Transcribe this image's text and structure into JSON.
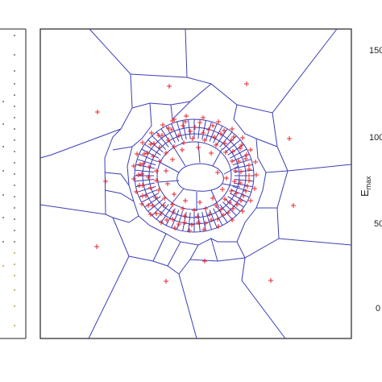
{
  "chart_data": {
    "type": "scatter",
    "title": "",
    "xlabel": "",
    "ylabel": "E_max",
    "ylabel_main": "E",
    "ylabel_sub": "max",
    "y_ticks": [
      {
        "value": 150,
        "label": "150"
      },
      {
        "value": 100,
        "label": "100"
      },
      {
        "value": 50,
        "label": "50"
      },
      {
        "value": 0,
        "label": "0"
      }
    ],
    "grid": false,
    "legend": "none",
    "colors": {
      "points": "#e8262a",
      "cells": "#3b3fb5",
      "frame": "#222222",
      "dots_left": "#6b6b6b",
      "dots_left_accent": "#b8a23a"
    },
    "series": [
      {
        "marker": "plus",
        "values_description_free": true,
        "points": [
          [
            210,
            107
          ],
          [
            306,
            104
          ],
          [
            121,
            139
          ],
          [
            359,
            172
          ],
          [
            131,
            225
          ],
          [
            364,
            255
          ],
          [
            120,
            306
          ],
          [
            336,
            348
          ],
          [
            254,
            324
          ],
          [
            206,
            349
          ],
          [
            214,
            150
          ],
          [
            230,
            151
          ],
          [
            248,
            152
          ],
          [
            264,
            156
          ],
          [
            278,
            162
          ],
          [
            290,
            170
          ],
          [
            300,
            180
          ],
          [
            306,
            192
          ],
          [
            309,
            205
          ],
          [
            309,
            218
          ],
          [
            307,
            231
          ],
          [
            302,
            243
          ],
          [
            294,
            254
          ],
          [
            283,
            264
          ],
          [
            270,
            272
          ],
          [
            255,
            277
          ],
          [
            238,
            279
          ],
          [
            222,
            278
          ],
          [
            207,
            273
          ],
          [
            194,
            265
          ],
          [
            184,
            255
          ],
          [
            177,
            243
          ],
          [
            173,
            230
          ],
          [
            172,
            217
          ],
          [
            174,
            204
          ],
          [
            179,
            191
          ],
          [
            187,
            179
          ],
          [
            197,
            168
          ],
          [
            209,
            159
          ],
          [
            236,
            163
          ],
          [
            252,
            165
          ],
          [
            266,
            170
          ],
          [
            279,
            178
          ],
          [
            289,
            188
          ],
          [
            296,
            200
          ],
          [
            299,
            213
          ],
          [
            298,
            227
          ],
          [
            293,
            240
          ],
          [
            285,
            251
          ],
          [
            274,
            260
          ],
          [
            260,
            266
          ],
          [
            245,
            269
          ],
          [
            229,
            268
          ],
          [
            215,
            263
          ],
          [
            203,
            255
          ],
          [
            193,
            245
          ],
          [
            187,
            233
          ],
          [
            184,
            220
          ],
          [
            185,
            207
          ],
          [
            190,
            194
          ],
          [
            198,
            183
          ],
          [
            209,
            174
          ],
          [
            222,
            168
          ],
          [
            239,
            172
          ],
          [
            254,
            174
          ],
          [
            268,
            180
          ],
          [
            280,
            189
          ],
          [
            288,
            200
          ],
          [
            292,
            212
          ],
          [
            291,
            225
          ],
          [
            287,
            237
          ],
          [
            279,
            247
          ],
          [
            268,
            255
          ],
          [
            255,
            259
          ],
          [
            241,
            261
          ],
          [
            227,
            259
          ],
          [
            214,
            254
          ],
          [
            204,
            246
          ],
          [
            197,
            236
          ],
          [
            194,
            224
          ],
          [
            194,
            212
          ],
          [
            198,
            200
          ],
          [
            206,
            190
          ],
          [
            216,
            182
          ],
          [
            228,
            177
          ],
          [
            270,
            214
          ],
          [
            242,
            158
          ],
          [
            259,
            161
          ],
          [
            274,
            166
          ],
          [
            287,
            174
          ],
          [
            298,
            184
          ],
          [
            305,
            197
          ],
          [
            309,
            210
          ],
          [
            309,
            224
          ],
          [
            305,
            237
          ],
          [
            299,
            249
          ],
          [
            289,
            259
          ],
          [
            277,
            267
          ],
          [
            262,
            273
          ],
          [
            246,
            276
          ],
          [
            229,
            276
          ],
          [
            214,
            272
          ],
          [
            200,
            265
          ],
          [
            189,
            255
          ],
          [
            181,
            243
          ],
          [
            177,
            230
          ],
          [
            176,
            216
          ],
          [
            178,
            203
          ],
          [
            183,
            190
          ],
          [
            191,
            178
          ],
          [
            201,
            168
          ],
          [
            213,
            161
          ],
          [
            227,
            156
          ],
          [
            231,
            144
          ],
          [
            252,
            146
          ],
          [
            271,
            151
          ],
          [
            288,
            160
          ],
          [
            301,
            171
          ],
          [
            311,
            186
          ],
          [
            317,
            201
          ],
          [
            318,
            217
          ],
          [
            316,
            234
          ],
          [
            311,
            249
          ],
          [
            301,
            262
          ],
          [
            288,
            273
          ],
          [
            271,
            281
          ],
          [
            253,
            285
          ],
          [
            235,
            286
          ],
          [
            217,
            283
          ],
          [
            200,
            276
          ],
          [
            187,
            266
          ],
          [
            176,
            253
          ],
          [
            169,
            238
          ],
          [
            166,
            222
          ],
          [
            166,
            206
          ],
          [
            170,
            191
          ],
          [
            177,
            177
          ],
          [
            188,
            165
          ],
          [
            202,
            155
          ],
          [
            216,
            148
          ],
          [
            262,
            190
          ],
          [
            246,
            183
          ],
          [
            226,
            186
          ],
          [
            214,
            198
          ],
          [
            206,
            212
          ],
          [
            208,
            228
          ],
          [
            216,
            241
          ],
          [
            230,
            249
          ],
          [
            248,
            251
          ],
          [
            264,
            246
          ],
          [
            276,
            235
          ],
          [
            281,
            221
          ]
        ]
      }
    ]
  },
  "left_panel": {
    "dots": [
      [
        18,
        44,
        "g"
      ],
      [
        18,
        68,
        "g"
      ],
      [
        18,
        88,
        "g"
      ],
      [
        18,
        104,
        "g"
      ],
      [
        18,
        118,
        "g"
      ],
      [
        18,
        132,
        "g"
      ],
      [
        18,
        146,
        "g"
      ],
      [
        18,
        160,
        "g"
      ],
      [
        18,
        174,
        "g"
      ],
      [
        18,
        188,
        "g"
      ],
      [
        18,
        202,
        "g"
      ],
      [
        18,
        216,
        "g"
      ],
      [
        18,
        230,
        "g"
      ],
      [
        18,
        244,
        "g"
      ],
      [
        18,
        258,
        "g"
      ],
      [
        18,
        272,
        "g"
      ],
      [
        18,
        286,
        "g"
      ],
      [
        18,
        300,
        "g"
      ],
      [
        18,
        314,
        "a"
      ],
      [
        18,
        328,
        "a"
      ],
      [
        18,
        342,
        "a"
      ],
      [
        18,
        360,
        "a"
      ],
      [
        18,
        380,
        "a"
      ],
      [
        18,
        404,
        "a"
      ],
      [
        4,
        126,
        "g"
      ],
      [
        4,
        154,
        "g"
      ],
      [
        4,
        182,
        "g"
      ],
      [
        4,
        212,
        "g"
      ],
      [
        4,
        242,
        "g"
      ],
      [
        4,
        270,
        "g"
      ],
      [
        4,
        300,
        "g"
      ],
      [
        4,
        330,
        "a"
      ]
    ]
  }
}
